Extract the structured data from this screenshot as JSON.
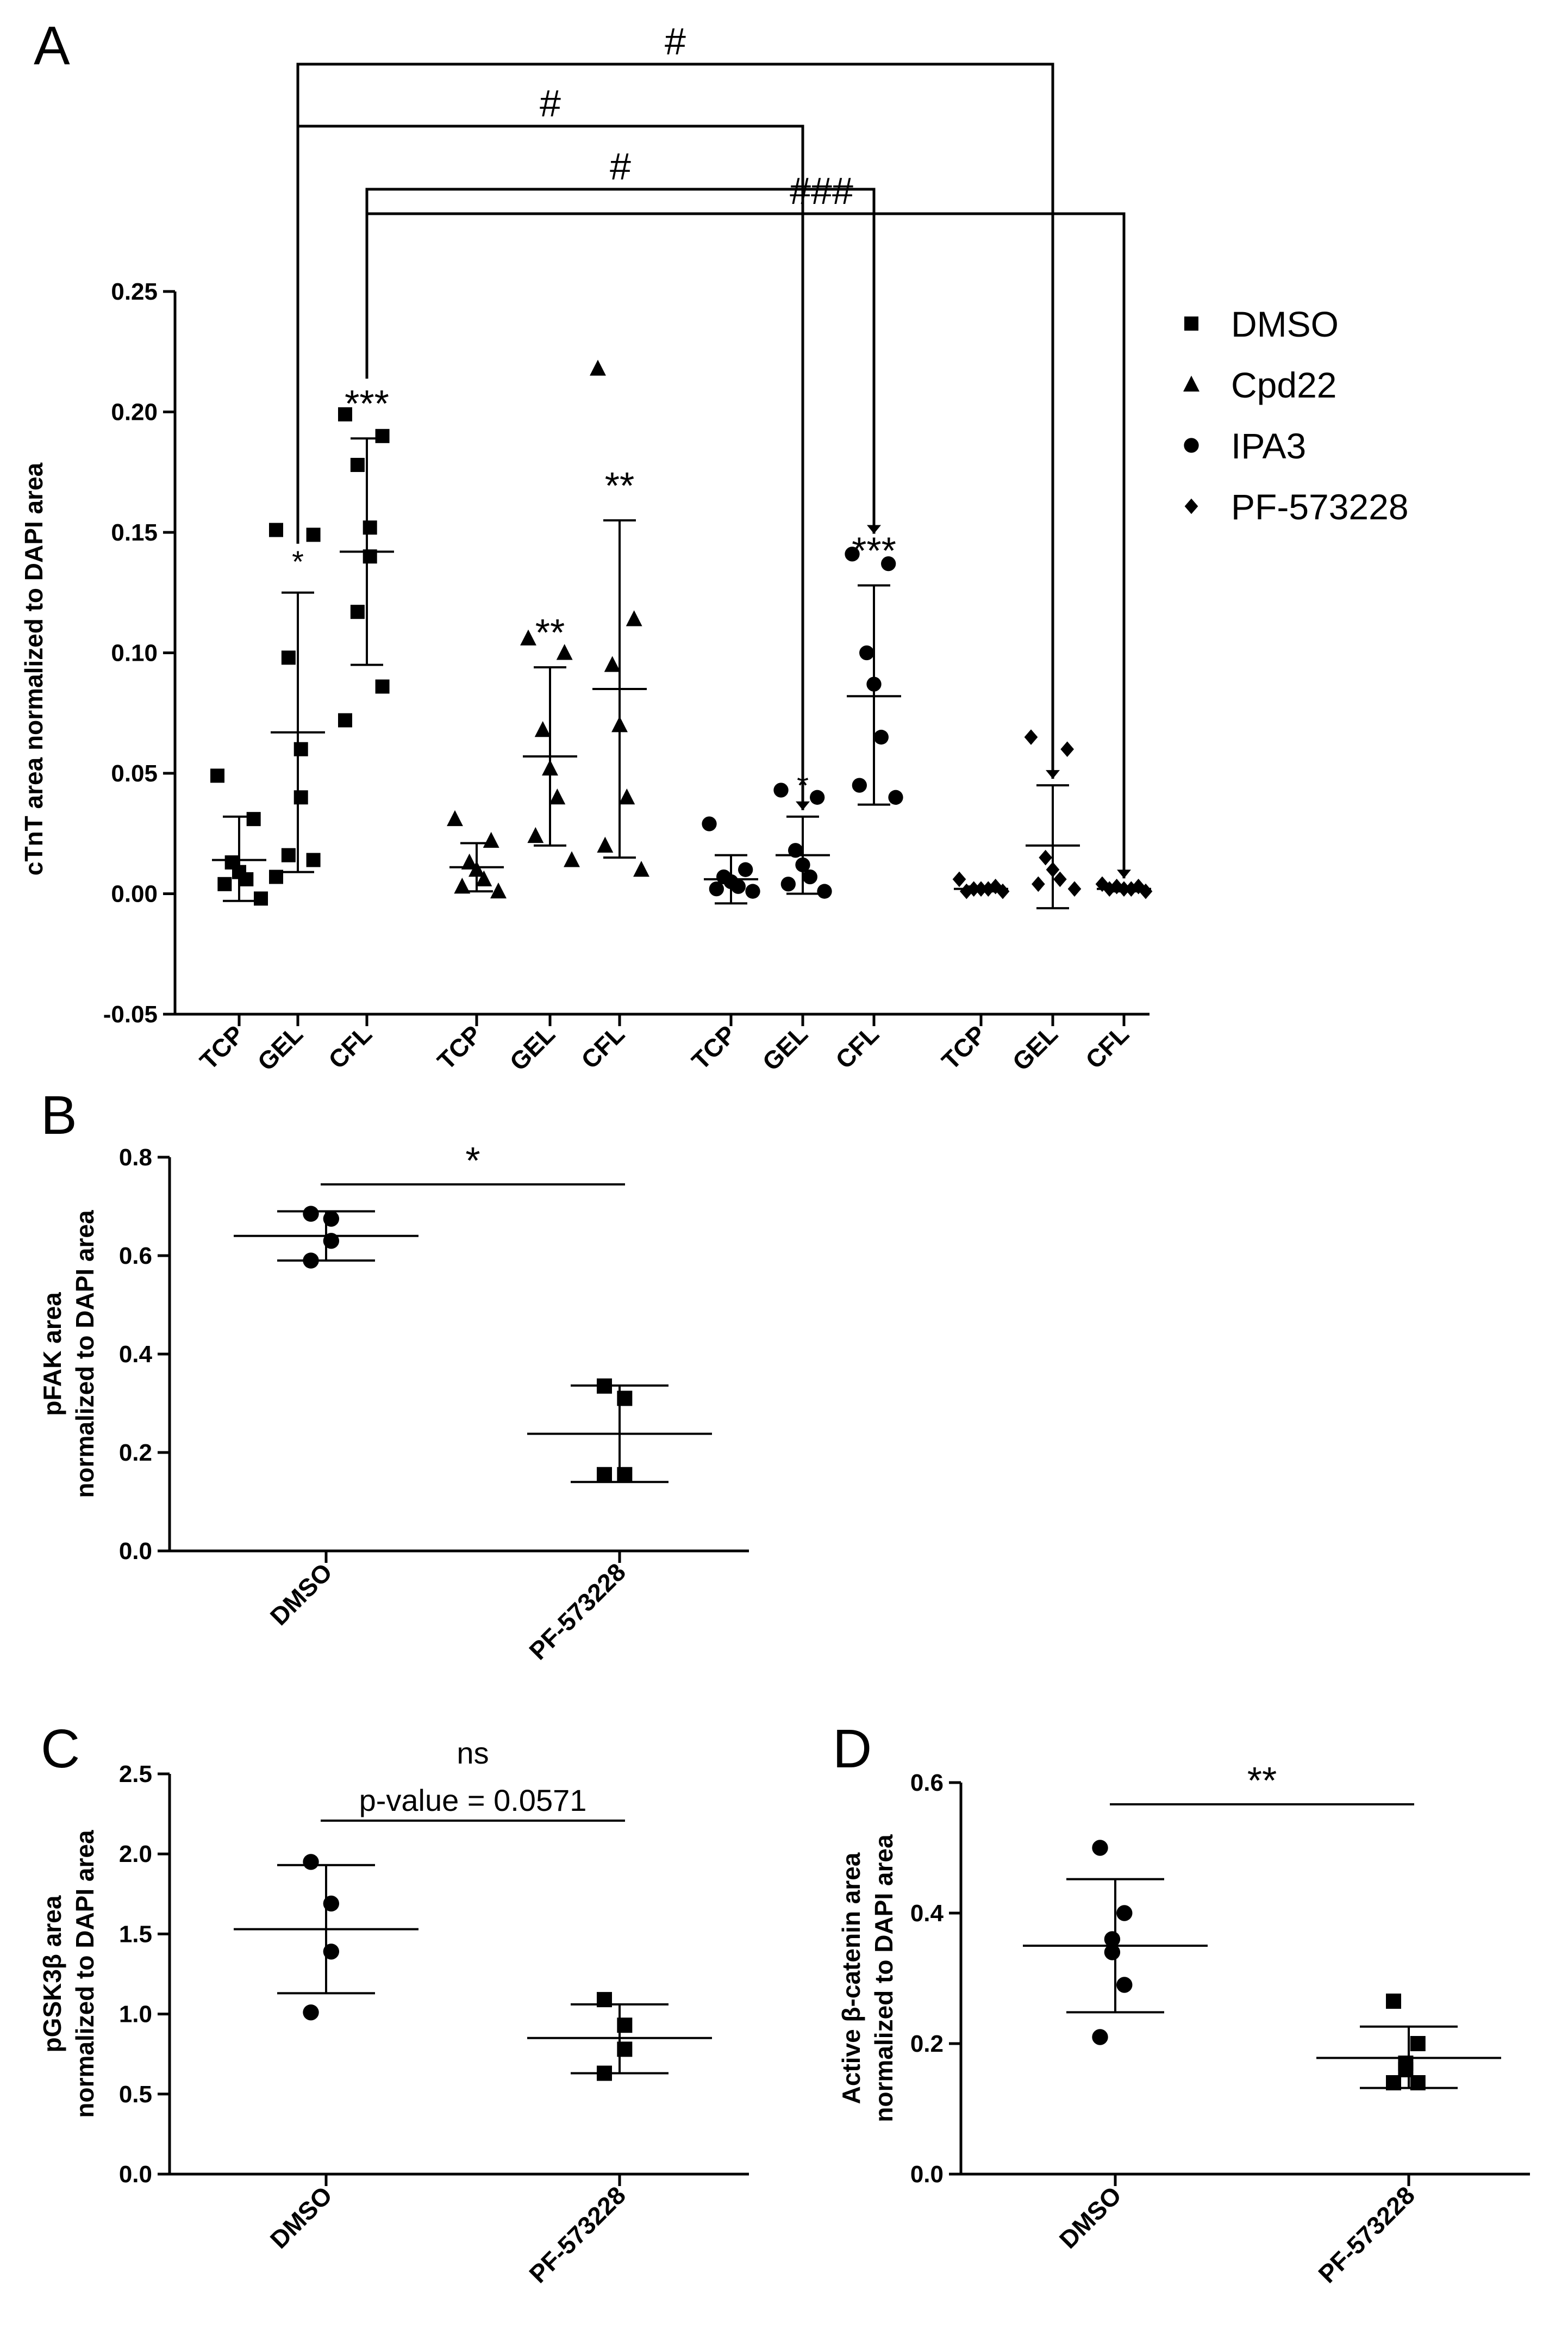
{
  "figure": {
    "panels": [
      "A",
      "B",
      "C",
      "D"
    ]
  },
  "chart_data": [
    {
      "panel": "A",
      "type": "scatter",
      "ylabel": "cTnT area normalized to DAPI area",
      "ylim": [
        -0.05,
        0.25
      ],
      "yticks": [
        "-0.05",
        "0.00",
        "0.05",
        "0.10",
        "0.15",
        "0.20",
        "0.25"
      ],
      "categories": [
        "TCP",
        "GEL",
        "CFL",
        "TCP",
        "GEL",
        "CFL",
        "TCP",
        "GEL",
        "CFL",
        "TCP",
        "GEL",
        "CFL"
      ],
      "legend": [
        {
          "name": "DMSO",
          "marker": "square"
        },
        {
          "name": "Cpd22",
          "marker": "triangle"
        },
        {
          "name": "IPA3",
          "marker": "circle"
        },
        {
          "name": "PF-573228",
          "marker": "diamond"
        }
      ],
      "series": [
        {
          "name": "DMSO",
          "marker": "square",
          "groups": [
            {
              "category_index": 0,
              "points": [
                0.049,
                0.031,
                0.013,
                0.009,
                0.006,
                0.004,
                -0.002
              ],
              "mean": 0.014,
              "sd_low": -0.003,
              "sd_high": 0.032,
              "sig": ""
            },
            {
              "category_index": 1,
              "points": [
                0.151,
                0.149,
                0.098,
                0.06,
                0.04,
                0.016,
                0.014,
                0.007
              ],
              "mean": 0.067,
              "sd_low": 0.009,
              "sd_high": 0.125,
              "sig": "*"
            },
            {
              "category_index": 2,
              "points": [
                0.199,
                0.19,
                0.178,
                0.152,
                0.14,
                0.117,
                0.086,
                0.072
              ],
              "mean": 0.142,
              "sd_low": 0.095,
              "sd_high": 0.189,
              "sig": "***"
            }
          ]
        },
        {
          "name": "Cpd22",
          "marker": "triangle",
          "groups": [
            {
              "category_index": 3,
              "points": [
                0.031,
                0.022,
                0.013,
                0.01,
                0.006,
                0.003,
                0.001
              ],
              "mean": 0.011,
              "sd_low": 0.001,
              "sd_high": 0.021,
              "sig": ""
            },
            {
              "category_index": 4,
              "points": [
                0.106,
                0.1,
                0.068,
                0.052,
                0.04,
                0.024,
                0.014
              ],
              "mean": 0.057,
              "sd_low": 0.02,
              "sd_high": 0.094,
              "sig": "**"
            },
            {
              "category_index": 5,
              "points": [
                0.218,
                0.114,
                0.095,
                0.07,
                0.04,
                0.02,
                0.01
              ],
              "mean": 0.085,
              "sd_low": 0.015,
              "sd_high": 0.155,
              "sig": "**"
            }
          ]
        },
        {
          "name": "IPA3",
          "marker": "circle",
          "groups": [
            {
              "category_index": 6,
              "points": [
                0.029,
                0.01,
                0.007,
                0.005,
                0.003,
                0.002,
                0.001
              ],
              "mean": 0.006,
              "sd_low": -0.004,
              "sd_high": 0.016,
              "sig": ""
            },
            {
              "category_index": 7,
              "points": [
                0.043,
                0.04,
                0.018,
                0.012,
                0.007,
                0.004,
                0.001
              ],
              "mean": 0.016,
              "sd_low": 0.0,
              "sd_high": 0.032,
              "sig": "*"
            },
            {
              "category_index": 8,
              "points": [
                0.141,
                0.137,
                0.1,
                0.087,
                0.065,
                0.045,
                0.04
              ],
              "mean": 0.082,
              "sd_low": 0.037,
              "sd_high": 0.128,
              "sig": "***"
            }
          ]
        },
        {
          "name": "PF-573228",
          "marker": "diamond",
          "groups": [
            {
              "category_index": 9,
              "points": [
                0.006,
                0.003,
                0.002,
                0.002,
                0.002,
                0.001,
                0.001
              ],
              "mean": 0.002,
              "sd_low": 0.001,
              "sd_high": 0.003,
              "sig": ""
            },
            {
              "category_index": 10,
              "points": [
                0.065,
                0.06,
                0.015,
                0.01,
                0.006,
                0.004,
                0.002
              ],
              "mean": 0.02,
              "sd_low": -0.006,
              "sd_high": 0.045,
              "sig": ""
            },
            {
              "category_index": 11,
              "points": [
                0.004,
                0.003,
                0.003,
                0.002,
                0.002,
                0.002,
                0.001
              ],
              "mean": 0.002,
              "sd_low": 0.001,
              "sd_high": 0.003,
              "sig": ""
            }
          ]
        }
      ],
      "comparisons": [
        {
          "from_index": 1,
          "to_index": 10,
          "label": "#"
        },
        {
          "from_index": 1,
          "to_index": 7,
          "label": "#"
        },
        {
          "from_index": 2,
          "to_index": 8,
          "label": "#"
        },
        {
          "from_index": 2,
          "to_index": 11,
          "label": "###"
        }
      ]
    },
    {
      "panel": "B",
      "type": "scatter",
      "ylabel": "pFAK area normalized to DAPI area",
      "ylabel_lines": [
        "pFAK area",
        "normalized to DAPI area"
      ],
      "ylim": [
        0.0,
        0.8
      ],
      "yticks": [
        "0.0",
        "0.2",
        "0.4",
        "0.6",
        "0.8"
      ],
      "categories": [
        "DMSO",
        "PF-573228"
      ],
      "groups": [
        {
          "name": "DMSO",
          "marker": "circle",
          "points": [
            0.685,
            0.675,
            0.63,
            0.59
          ],
          "mean": 0.64,
          "sd_low": 0.59,
          "sd_high": 0.69
        },
        {
          "name": "PF-573228",
          "marker": "square",
          "points": [
            0.335,
            0.31,
            0.155,
            0.155
          ],
          "mean": 0.238,
          "sd_low": 0.14,
          "sd_high": 0.336
        }
      ],
      "annotation": {
        "label": "*",
        "sub": ""
      }
    },
    {
      "panel": "C",
      "type": "scatter",
      "ylabel": "pGSK3β area normalized to DAPI area",
      "ylabel_lines": [
        "pGSK3β area",
        "normalized to DAPI area"
      ],
      "ylim": [
        0.0,
        2.5
      ],
      "yticks": [
        "0.0",
        "0.5",
        "1.0",
        "1.5",
        "2.0",
        "2.5"
      ],
      "categories": [
        "DMSO",
        "PF-573228"
      ],
      "groups": [
        {
          "name": "DMSO",
          "marker": "circle",
          "points": [
            1.95,
            1.69,
            1.39,
            1.01
          ],
          "mean": 1.53,
          "sd_low": 1.13,
          "sd_high": 1.93
        },
        {
          "name": "PF-573228",
          "marker": "square",
          "points": [
            1.09,
            0.93,
            0.78,
            0.63
          ],
          "mean": 0.85,
          "sd_low": 0.63,
          "sd_high": 1.06
        }
      ],
      "annotation": {
        "label": "ns",
        "sub": "p-value = 0.0571"
      }
    },
    {
      "panel": "D",
      "type": "scatter",
      "ylabel": "Active β-catenin area normalized to DAPI area",
      "ylabel_lines": [
        "Active β-catenin area",
        "normalized to DAPI area"
      ],
      "ylim": [
        0.0,
        0.6
      ],
      "yticks": [
        "0.0",
        "0.2",
        "0.4",
        "0.6"
      ],
      "categories": [
        "DMSO",
        "PF-573228"
      ],
      "groups": [
        {
          "name": "DMSO",
          "marker": "circle",
          "points": [
            0.5,
            0.4,
            0.36,
            0.34,
            0.29,
            0.21
          ],
          "mean": 0.35,
          "sd_low": 0.248,
          "sd_high": 0.452
        },
        {
          "name": "PF-573228",
          "marker": "square",
          "points": [
            0.265,
            0.2,
            0.17,
            0.16,
            0.14,
            0.14
          ],
          "mean": 0.178,
          "sd_low": 0.132,
          "sd_high": 0.226
        }
      ],
      "annotation": {
        "label": "**",
        "sub": ""
      }
    }
  ]
}
